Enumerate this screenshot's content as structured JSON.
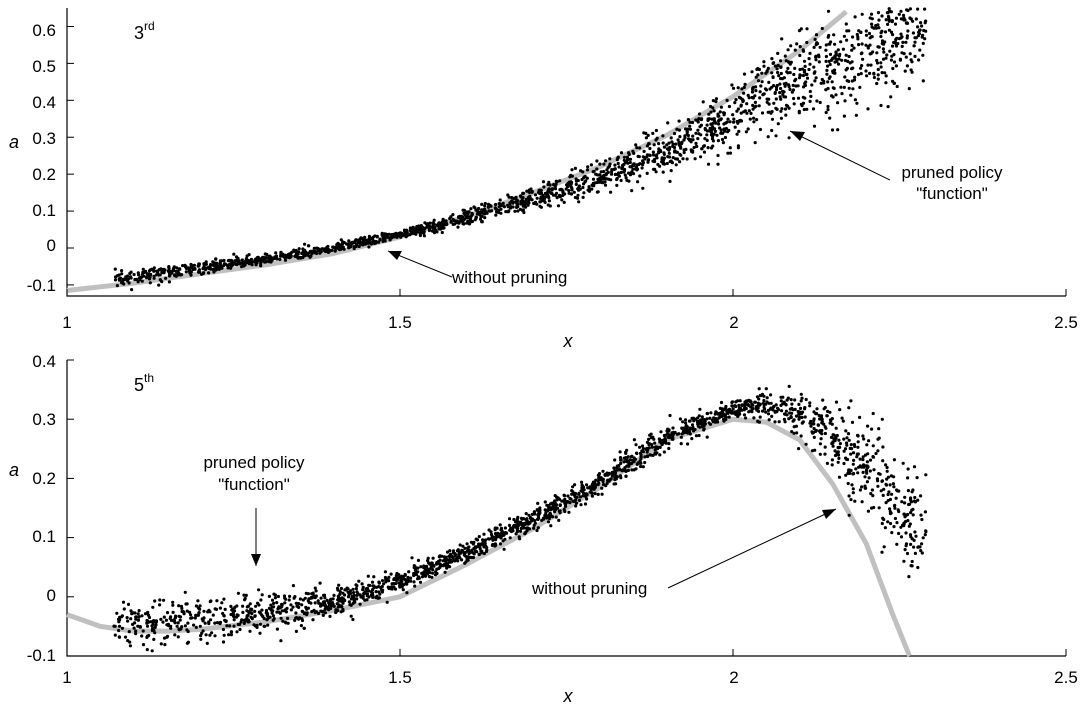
{
  "colors": {
    "curve": "#c0c0c0",
    "points": "#000000",
    "axes": "#000000",
    "background": "#ffffff"
  },
  "chart_data": [
    {
      "type": "scatter",
      "panel_label": "3",
      "panel_label_sup": "rd",
      "xlabel": "x",
      "ylabel": "a",
      "xlim": [
        1,
        2.5
      ],
      "ylim": [
        -0.13,
        0.65
      ],
      "xticks": [
        "1",
        "1.5",
        "2",
        "2.5"
      ],
      "yticks": [
        "-0.1",
        "0",
        "0.1",
        "0.2",
        "0.3",
        "0.4",
        "0.5",
        "0.6"
      ],
      "grid": false,
      "series": [
        {
          "kind": "line",
          "x": [
            1.0,
            1.1,
            1.2,
            1.3,
            1.4,
            1.5,
            1.6,
            1.7,
            1.8,
            1.9,
            2.0,
            2.1,
            2.17
          ],
          "y": [
            -0.115,
            -0.095,
            -0.07,
            -0.045,
            -0.015,
            0.03,
            0.085,
            0.15,
            0.22,
            0.305,
            0.41,
            0.535,
            0.64
          ]
        },
        {
          "kind": "points",
          "x_range": [
            1.07,
            2.29
          ],
          "approx_count": 2000,
          "center": [
            [
              1.07,
              -0.085
            ],
            [
              1.2,
              -0.055
            ],
            [
              1.3,
              -0.03
            ],
            [
              1.4,
              0.0
            ],
            [
              1.5,
              0.035
            ],
            [
              1.6,
              0.08
            ],
            [
              1.7,
              0.135
            ],
            [
              1.8,
              0.19
            ],
            [
              1.9,
              0.265
            ],
            [
              2.0,
              0.355
            ],
            [
              2.05,
              0.42
            ],
            [
              2.1,
              0.46
            ],
            [
              2.15,
              0.49
            ],
            [
              2.2,
              0.52
            ],
            [
              2.25,
              0.57
            ],
            [
              2.29,
              0.58
            ]
          ],
          "spread": [
            [
              1.07,
              0.01
            ],
            [
              1.5,
              0.006
            ],
            [
              1.8,
              0.02
            ],
            [
              2.0,
              0.04
            ],
            [
              2.1,
              0.06
            ],
            [
              2.2,
              0.07
            ],
            [
              2.29,
              0.06
            ]
          ]
        }
      ],
      "annotations": [
        {
          "lines": [
            "without pruning"
          ],
          "arrow_to": [
            1.48,
            0.0
          ]
        },
        {
          "lines": [
            "pruned policy",
            "\"function\""
          ],
          "arrow_to": [
            2.17,
            0.33
          ]
        }
      ]
    },
    {
      "type": "scatter",
      "panel_label": "5",
      "panel_label_sup": "th",
      "xlabel": "x",
      "ylabel": "a",
      "xlim": [
        1,
        2.5
      ],
      "ylim": [
        -0.1,
        0.4
      ],
      "xticks": [
        "1",
        "1.5",
        "2",
        "2.5"
      ],
      "yticks": [
        "-0.1",
        "0",
        "0.1",
        "0.2",
        "0.3",
        "0.4"
      ],
      "grid": false,
      "series": [
        {
          "kind": "line",
          "x": [
            1.0,
            1.05,
            1.1,
            1.15,
            1.2,
            1.3,
            1.4,
            1.5,
            1.6,
            1.7,
            1.8,
            1.9,
            2.0,
            2.05,
            2.1,
            2.15,
            2.2,
            2.24,
            2.265
          ],
          "y": [
            -0.03,
            -0.05,
            -0.058,
            -0.058,
            -0.055,
            -0.042,
            -0.023,
            0.0,
            0.055,
            0.115,
            0.185,
            0.265,
            0.3,
            0.295,
            0.265,
            0.19,
            0.09,
            -0.03,
            -0.1
          ]
        },
        {
          "kind": "points",
          "x_range": [
            1.07,
            2.29
          ],
          "approx_count": 2000,
          "center": [
            [
              1.07,
              -0.04
            ],
            [
              1.1,
              -0.045
            ],
            [
              1.2,
              -0.04
            ],
            [
              1.3,
              -0.025
            ],
            [
              1.4,
              -0.01
            ],
            [
              1.5,
              0.025
            ],
            [
              1.6,
              0.075
            ],
            [
              1.7,
              0.13
            ],
            [
              1.8,
              0.19
            ],
            [
              1.9,
              0.27
            ],
            [
              2.0,
              0.315
            ],
            [
              2.05,
              0.325
            ],
            [
              2.1,
              0.31
            ],
            [
              2.15,
              0.27
            ],
            [
              2.2,
              0.22
            ],
            [
              2.29,
              0.1
            ]
          ],
          "spread": [
            [
              1.07,
              0.02
            ],
            [
              1.2,
              0.022
            ],
            [
              1.3,
              0.018
            ],
            [
              1.4,
              0.012
            ],
            [
              1.6,
              0.008
            ],
            [
              1.8,
              0.01
            ],
            [
              2.0,
              0.008
            ],
            [
              2.1,
              0.02
            ],
            [
              2.2,
              0.04
            ],
            [
              2.29,
              0.05
            ]
          ]
        }
      ],
      "annotations": [
        {
          "lines": [
            "pruned policy",
            "\"function\""
          ],
          "arrow_to": [
            1.29,
            0.03
          ]
        },
        {
          "lines": [
            "without pruning"
          ],
          "arrow_to": [
            2.15,
            0.2
          ]
        }
      ]
    }
  ]
}
